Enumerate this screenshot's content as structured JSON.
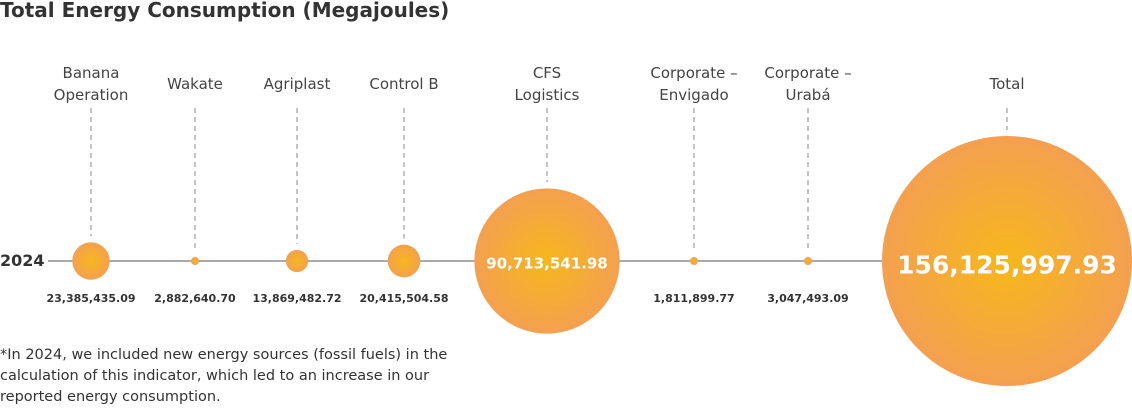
{
  "chart_data": {
    "type": "bubble",
    "title": "Total Energy Consumption (Megajoules)",
    "row_label": "2024",
    "categories": [
      "Banana\nOperation",
      "Wakate",
      "Agriplast",
      "Control B",
      "CFS\nLogistics",
      "Corporate –\nEnvigado",
      "Corporate –\nUrabá",
      "Total"
    ],
    "values": [
      23385435.09,
      2882640.7,
      13869482.72,
      20415504.58,
      90713541.98,
      1811899.77,
      3047493.09,
      156125997.93
    ],
    "value_labels": [
      "23,385,435.09",
      "2,882,640.70",
      "13,869,482.72",
      "20,415,504.58",
      "90,713,541.98",
      "1,811,899.77",
      "3,047,493.09",
      "156,125,997.93"
    ],
    "color": "#f4a050",
    "center_color": "#f6b71c",
    "note": "*In 2024, we included new energy sources (fossil fuels) in the\ncalculation of this indicator, which led to an increase in our\nreported energy consumption."
  }
}
